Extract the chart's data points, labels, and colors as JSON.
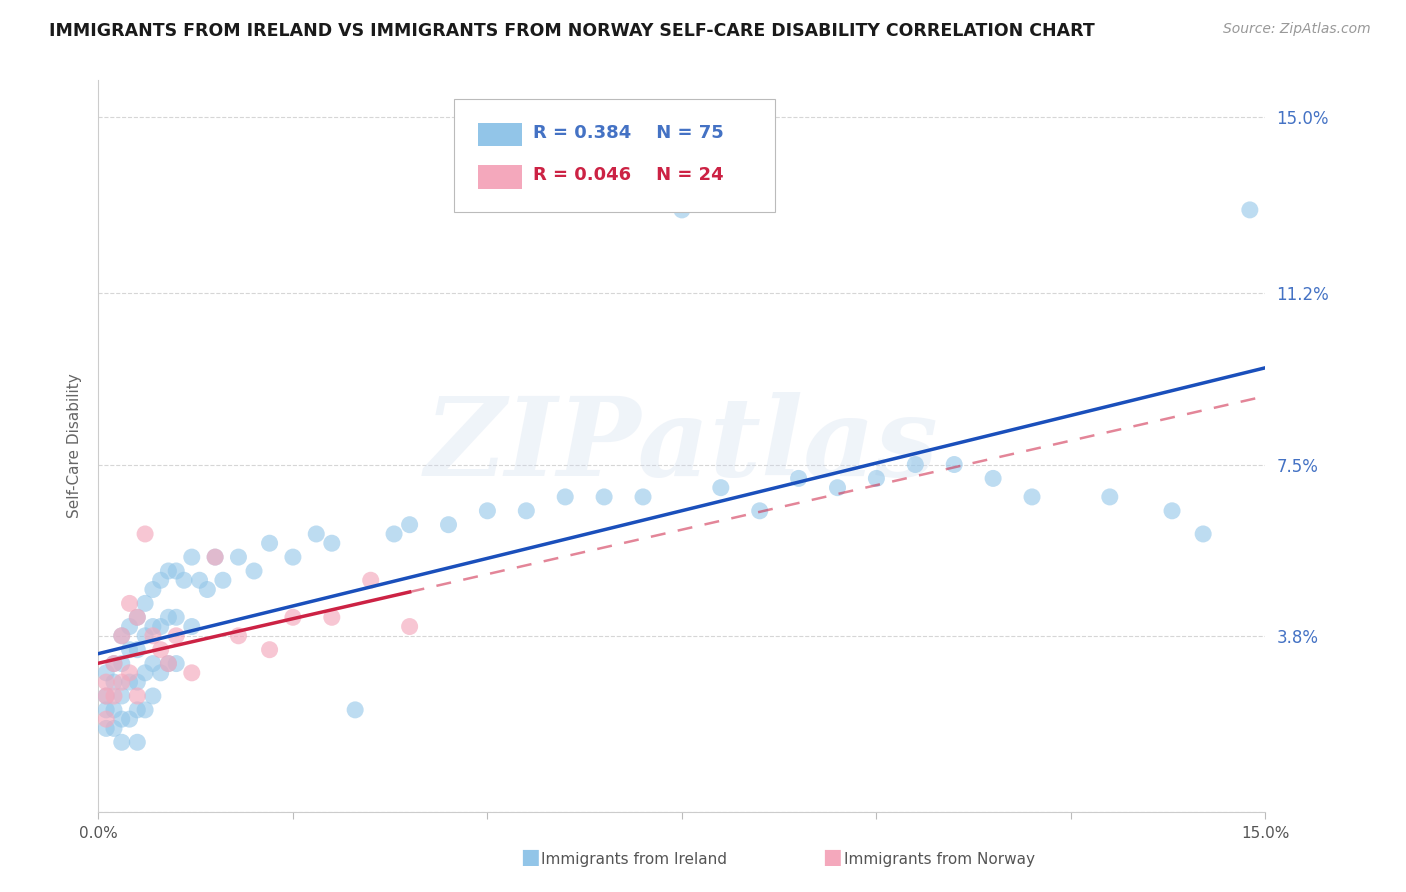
{
  "title": "IMMIGRANTS FROM IRELAND VS IMMIGRANTS FROM NORWAY SELF-CARE DISABILITY CORRELATION CHART",
  "source": "Source: ZipAtlas.com",
  "ylabel": "Self-Care Disability",
  "xlim": [
    0.0,
    0.15
  ],
  "ylim": [
    0.0,
    0.158
  ],
  "ytick_values": [
    0.0,
    0.038,
    0.075,
    0.112,
    0.15
  ],
  "ytick_labels": [
    "",
    "3.8%",
    "7.5%",
    "11.2%",
    "15.0%"
  ],
  "xtick_positions": [
    0.0,
    0.025,
    0.05,
    0.075,
    0.1,
    0.125,
    0.15
  ],
  "legend_ireland_R": "0.384",
  "legend_ireland_N": "75",
  "legend_norway_R": "0.046",
  "legend_norway_N": "24",
  "ireland_color": "#92C5E8",
  "norway_color": "#F4A8BC",
  "ireland_line_color": "#1A4FBB",
  "norway_line_color": "#CC2244",
  "tick_label_color": "#4472C4",
  "background_color": "#FFFFFF",
  "grid_color": "#CCCCCC",
  "watermark": "ZIPatlas",
  "ireland_x": [
    0.001,
    0.001,
    0.001,
    0.001,
    0.002,
    0.002,
    0.002,
    0.002,
    0.003,
    0.003,
    0.003,
    0.003,
    0.003,
    0.004,
    0.004,
    0.004,
    0.004,
    0.005,
    0.005,
    0.005,
    0.005,
    0.005,
    0.006,
    0.006,
    0.006,
    0.006,
    0.007,
    0.007,
    0.007,
    0.007,
    0.008,
    0.008,
    0.008,
    0.009,
    0.009,
    0.009,
    0.01,
    0.01,
    0.01,
    0.011,
    0.012,
    0.012,
    0.013,
    0.014,
    0.015,
    0.016,
    0.018,
    0.02,
    0.022,
    0.025,
    0.028,
    0.03,
    0.033,
    0.038,
    0.04,
    0.045,
    0.05,
    0.055,
    0.06,
    0.065,
    0.07,
    0.075,
    0.08,
    0.085,
    0.09,
    0.095,
    0.1,
    0.105,
    0.11,
    0.115,
    0.12,
    0.13,
    0.138,
    0.142,
    0.148
  ],
  "ireland_y": [
    0.03,
    0.025,
    0.022,
    0.018,
    0.032,
    0.028,
    0.022,
    0.018,
    0.038,
    0.032,
    0.025,
    0.02,
    0.015,
    0.04,
    0.035,
    0.028,
    0.02,
    0.042,
    0.035,
    0.028,
    0.022,
    0.015,
    0.045,
    0.038,
    0.03,
    0.022,
    0.048,
    0.04,
    0.032,
    0.025,
    0.05,
    0.04,
    0.03,
    0.052,
    0.042,
    0.032,
    0.052,
    0.042,
    0.032,
    0.05,
    0.055,
    0.04,
    0.05,
    0.048,
    0.055,
    0.05,
    0.055,
    0.052,
    0.058,
    0.055,
    0.06,
    0.058,
    0.022,
    0.06,
    0.062,
    0.062,
    0.065,
    0.065,
    0.068,
    0.068,
    0.068,
    0.13,
    0.07,
    0.065,
    0.072,
    0.07,
    0.072,
    0.075,
    0.075,
    0.072,
    0.068,
    0.068,
    0.065,
    0.06,
    0.13
  ],
  "norway_x": [
    0.001,
    0.001,
    0.001,
    0.002,
    0.002,
    0.003,
    0.003,
    0.004,
    0.004,
    0.005,
    0.005,
    0.006,
    0.007,
    0.008,
    0.009,
    0.01,
    0.012,
    0.015,
    0.018,
    0.022,
    0.025,
    0.03,
    0.035,
    0.04
  ],
  "norway_y": [
    0.028,
    0.025,
    0.02,
    0.032,
    0.025,
    0.038,
    0.028,
    0.045,
    0.03,
    0.042,
    0.025,
    0.06,
    0.038,
    0.035,
    0.032,
    0.038,
    0.03,
    0.055,
    0.038,
    0.035,
    0.042,
    0.042,
    0.05,
    0.04
  ]
}
